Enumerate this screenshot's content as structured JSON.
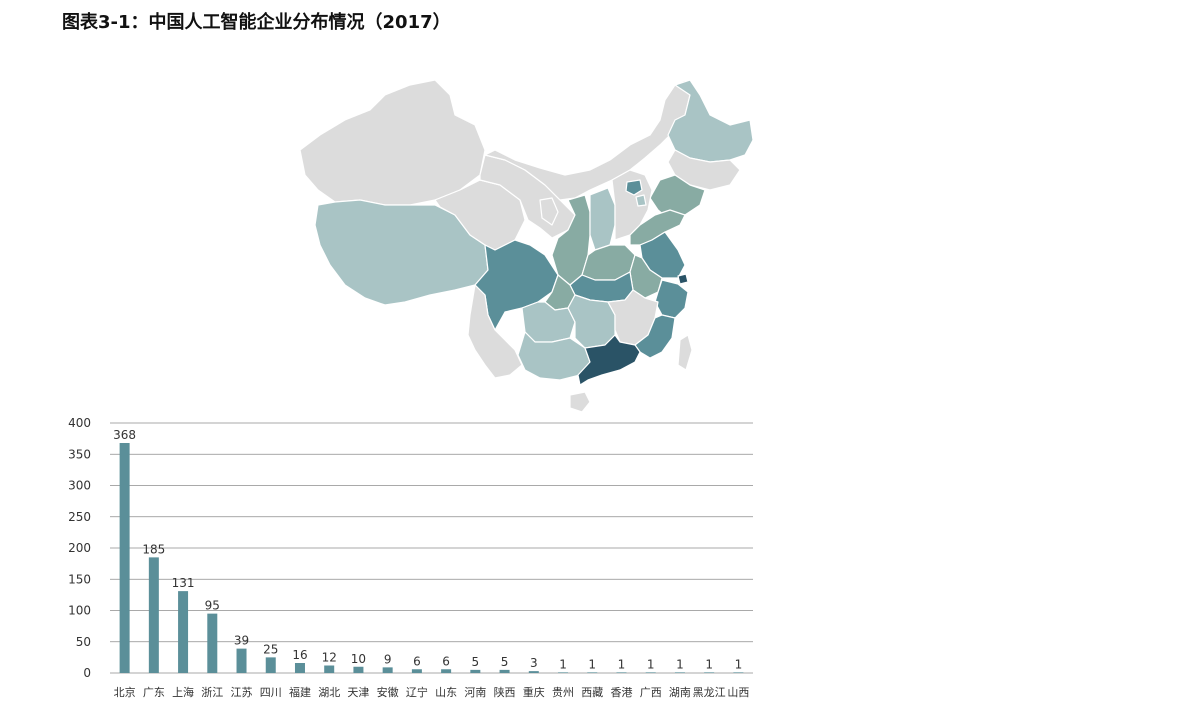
{
  "title": "图表3-1：中国人工智能企业分布情况（2017）",
  "colors": {
    "bar": "#5b8f99",
    "grid": "#8c8c8c",
    "map_gray": "#dcdcdc",
    "map_light": "#a9c4c5",
    "map_mid": "#88aba3",
    "map_teal": "#5b8f99",
    "map_dark": "#2a5366",
    "map_border": "#ffffff"
  },
  "chart_data": {
    "type": "bar",
    "categories": [
      "北京",
      "广东",
      "上海",
      "浙江",
      "江苏",
      "四川",
      "福建",
      "湖北",
      "天津",
      "安徽",
      "辽宁",
      "山东",
      "河南",
      "陕西",
      "重庆",
      "贵州",
      "西藏",
      "香港",
      "广西",
      "湖南",
      "黑龙江",
      "山西"
    ],
    "values": [
      368,
      185,
      131,
      95,
      39,
      25,
      16,
      12,
      10,
      9,
      6,
      6,
      5,
      5,
      3,
      1,
      1,
      1,
      1,
      1,
      1,
      1
    ],
    "ylim": [
      0,
      400
    ],
    "yticks": [
      0,
      50,
      100,
      150,
      200,
      250,
      300,
      350,
      400
    ],
    "grid": true,
    "xlabel": "",
    "ylabel": ""
  }
}
